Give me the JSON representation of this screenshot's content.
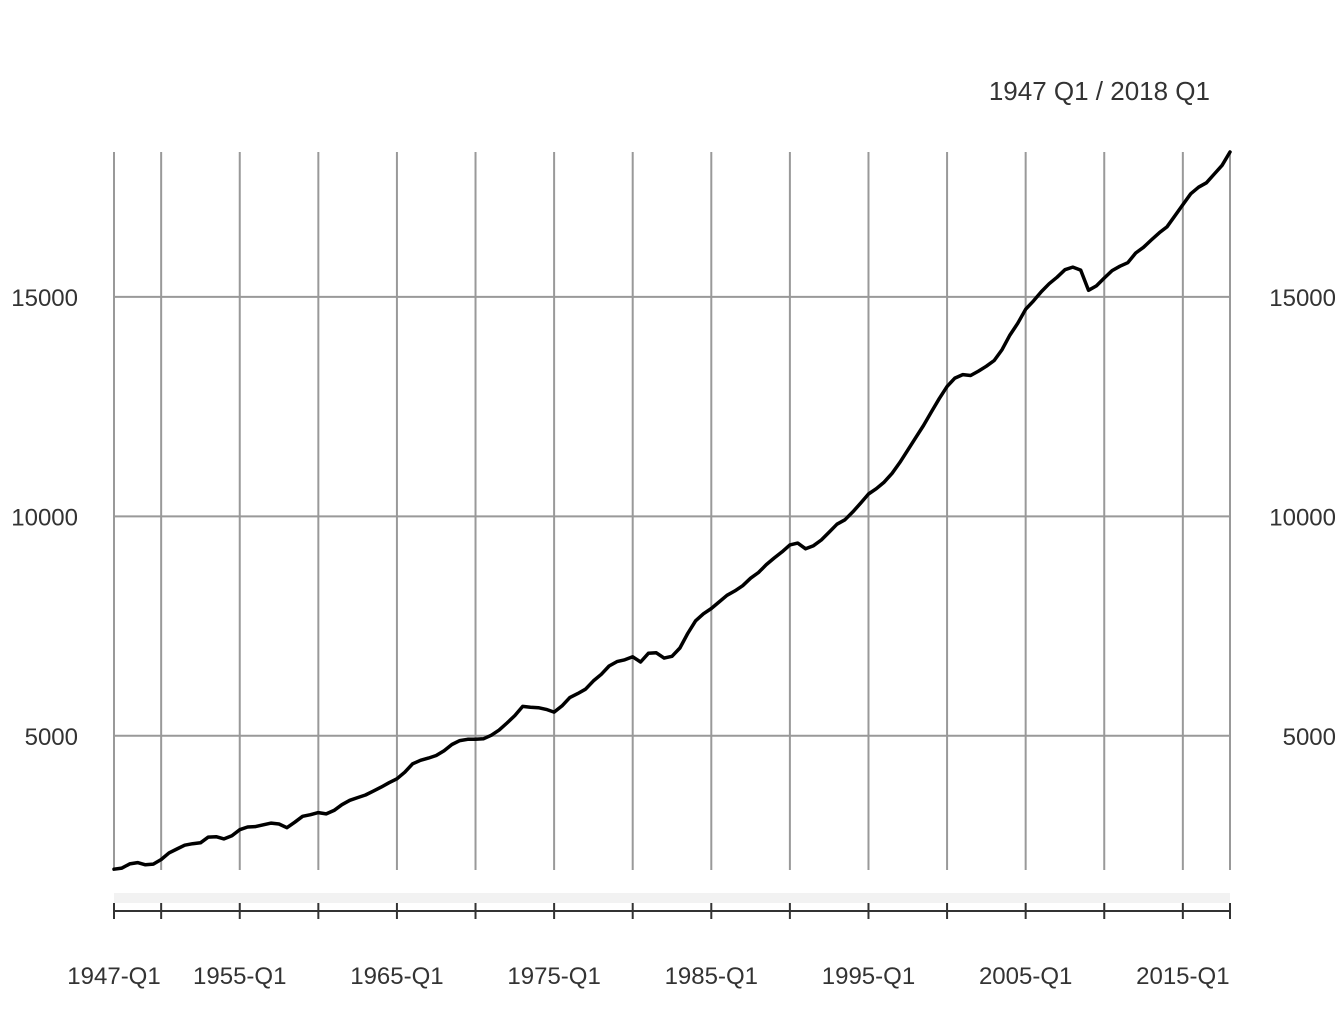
{
  "chart_data": {
    "type": "line",
    "title": "",
    "date_range_label": "1947 Q1 / 2018 Q1",
    "xlabel": "",
    "ylabel": "",
    "xlim": [
      1947.0,
      2018.0
    ],
    "ylim": [
      1941,
      18302
    ],
    "y_ticks": [
      5000,
      10000,
      15000
    ],
    "x_tick_labels": [
      {
        "label": "1947-Q1",
        "x": 1947.0
      },
      {
        "label": "1955-Q1",
        "x": 1955.0
      },
      {
        "label": "1965-Q1",
        "x": 1965.0
      },
      {
        "label": "1975-Q1",
        "x": 1975.0
      },
      {
        "label": "1985-Q1",
        "x": 1985.0
      },
      {
        "label": "1995-Q1",
        "x": 1995.0
      },
      {
        "label": "2005-Q1",
        "x": 2005.0
      },
      {
        "label": "2015-Q1",
        "x": 2015.0
      }
    ],
    "x_gridlines": [
      1947.0,
      1950.0,
      1955.0,
      1960.0,
      1965.0,
      1970.0,
      1975.0,
      1980.0,
      1985.0,
      1990.0,
      1995.0,
      2000.0,
      2005.0,
      2010.0,
      2015.0,
      2018.0
    ],
    "grid": true,
    "y_axis_sides": [
      "left",
      "right"
    ],
    "series": [
      {
        "x": [
          1947.0,
          1947.5,
          1948.0,
          1948.5,
          1949.0,
          1949.5,
          1950.0,
          1950.5,
          1951.0,
          1951.5,
          1952.0,
          1952.5,
          1953.0,
          1953.5,
          1954.0,
          1954.5,
          1955.0,
          1955.5,
          1956.0,
          1956.5,
          1957.0,
          1957.5,
          1958.0,
          1958.5,
          1959.0,
          1959.5,
          1960.0,
          1960.5,
          1961.0,
          1961.5,
          1962.0,
          1962.5,
          1963.0,
          1963.5,
          1964.0,
          1964.5,
          1965.0,
          1965.5,
          1966.0,
          1966.5,
          1967.0,
          1967.5,
          1968.0,
          1968.5,
          1969.0,
          1969.5,
          1970.0,
          1970.5,
          1971.0,
          1971.5,
          1972.0,
          1972.5,
          1973.0,
          1973.5,
          1974.0,
          1974.5,
          1975.0,
          1975.5,
          1976.0,
          1976.5,
          1977.0,
          1977.5,
          1978.0,
          1978.5,
          1979.0,
          1979.5,
          1980.0,
          1980.5,
          1981.0,
          1981.5,
          1982.0,
          1982.5,
          1983.0,
          1983.5,
          1984.0,
          1984.5,
          1985.0,
          1985.5,
          1986.0,
          1986.5,
          1987.0,
          1987.5,
          1988.0,
          1988.5,
          1989.0,
          1989.5,
          1990.0,
          1990.5,
          1991.0,
          1991.5,
          1992.0,
          1992.5,
          1993.0,
          1993.5,
          1994.0,
          1994.5,
          1995.0,
          1995.5,
          1996.0,
          1996.5,
          1997.0,
          1997.5,
          1998.0,
          1998.5,
          1999.0,
          1999.5,
          2000.0,
          2000.5,
          2001.0,
          2001.5,
          2002.0,
          2002.5,
          2003.0,
          2003.5,
          2004.0,
          2004.5,
          2005.0,
          2005.5,
          2006.0,
          2006.5,
          2007.0,
          2007.5,
          2008.0,
          2008.5,
          2009.0,
          2009.5,
          2010.0,
          2010.5,
          2011.0,
          2011.5,
          2012.0,
          2012.5,
          2013.0,
          2013.5,
          2014.0,
          2014.5,
          2015.0,
          2015.5,
          2016.0,
          2016.5,
          2017.0,
          2017.5,
          2018.0
        ],
        "values": [
          1960,
          1985,
          2080,
          2110,
          2060,
          2075,
          2180,
          2330,
          2420,
          2505,
          2540,
          2560,
          2690,
          2700,
          2650,
          2720,
          2860,
          2920,
          2930,
          2970,
          3010,
          2990,
          2905,
          3030,
          3165,
          3200,
          3250,
          3220,
          3300,
          3430,
          3530,
          3590,
          3650,
          3740,
          3830,
          3930,
          4020,
          4170,
          4360,
          4440,
          4490,
          4550,
          4660,
          4800,
          4890,
          4920,
          4920,
          4930,
          5010,
          5130,
          5290,
          5460,
          5670,
          5650,
          5640,
          5600,
          5540,
          5680,
          5870,
          5960,
          6060,
          6250,
          6400,
          6590,
          6690,
          6730,
          6800,
          6680,
          6880,
          6890,
          6770,
          6810,
          7000,
          7330,
          7620,
          7780,
          7900,
          8050,
          8200,
          8300,
          8420,
          8590,
          8720,
          8900,
          9050,
          9190,
          9350,
          9390,
          9260,
          9330,
          9460,
          9640,
          9820,
          9920,
          10100,
          10300,
          10510,
          10630,
          10780,
          10980,
          11230,
          11510,
          11790,
          12070,
          12380,
          12680,
          12960,
          13150,
          13230,
          13210,
          13310,
          13420,
          13550,
          13800,
          14130,
          14400,
          14720,
          14910,
          15120,
          15300,
          15450,
          15620,
          15680,
          15610,
          15150,
          15250,
          15430,
          15600,
          15700,
          15780,
          16000,
          16130,
          16300,
          16460,
          16600,
          16850,
          17100,
          17350,
          17500,
          17600,
          17800,
          18000,
          18302
        ]
      }
    ]
  }
}
